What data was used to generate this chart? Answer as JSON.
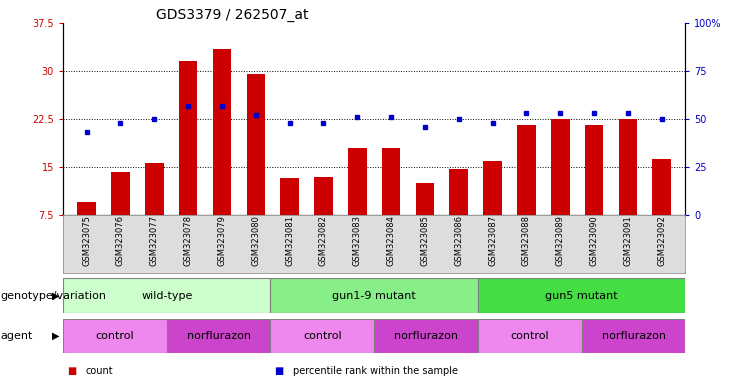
{
  "title": "GDS3379 / 262507_at",
  "samples": [
    "GSM323075",
    "GSM323076",
    "GSM323077",
    "GSM323078",
    "GSM323079",
    "GSM323080",
    "GSM323081",
    "GSM323082",
    "GSM323083",
    "GSM323084",
    "GSM323085",
    "GSM323086",
    "GSM323087",
    "GSM323088",
    "GSM323089",
    "GSM323090",
    "GSM323091",
    "GSM323092"
  ],
  "counts": [
    9.5,
    14.3,
    15.7,
    31.5,
    33.5,
    29.5,
    13.3,
    13.5,
    18.0,
    18.0,
    12.5,
    14.7,
    16.0,
    21.5,
    22.5,
    21.5,
    22.5,
    16.3
  ],
  "percentile_ranks": [
    43,
    48,
    50,
    57,
    57,
    52,
    48,
    48,
    51,
    51,
    46,
    50,
    48,
    53,
    53,
    53,
    53,
    50
  ],
  "ylim_left": [
    7.5,
    37.5
  ],
  "ylim_right": [
    0,
    100
  ],
  "yticks_left": [
    7.5,
    15.0,
    22.5,
    30.0,
    37.5
  ],
  "yticks_right": [
    0,
    25,
    50,
    75,
    100
  ],
  "ytick_labels_left": [
    "7.5",
    "15",
    "22.5",
    "30",
    "37.5"
  ],
  "ytick_labels_right": [
    "0",
    "25",
    "50",
    "75",
    "100%"
  ],
  "bar_color": "#cc0000",
  "dot_color": "#0000cc",
  "bg_color": "#ffffff",
  "genotype_groups": [
    {
      "label": "wild-type",
      "start": 0,
      "end": 6,
      "color": "#ccffcc"
    },
    {
      "label": "gun1-9 mutant",
      "start": 6,
      "end": 12,
      "color": "#88ee88"
    },
    {
      "label": "gun5 mutant",
      "start": 12,
      "end": 18,
      "color": "#44dd44"
    }
  ],
  "agent_groups": [
    {
      "label": "control",
      "start": 0,
      "end": 3,
      "color": "#ee88ee"
    },
    {
      "label": "norflurazon",
      "start": 3,
      "end": 6,
      "color": "#cc44cc"
    },
    {
      "label": "control",
      "start": 6,
      "end": 9,
      "color": "#ee88ee"
    },
    {
      "label": "norflurazon",
      "start": 9,
      "end": 12,
      "color": "#cc44cc"
    },
    {
      "label": "control",
      "start": 12,
      "end": 15,
      "color": "#ee88ee"
    },
    {
      "label": "norflurazon",
      "start": 15,
      "end": 18,
      "color": "#cc44cc"
    }
  ],
  "legend_items": [
    {
      "label": "count",
      "color": "#cc0000"
    },
    {
      "label": "percentile rank within the sample",
      "color": "#0000cc"
    }
  ],
  "left_label_color": "#cc0000",
  "right_label_color": "#0000cc",
  "title_fontsize": 10,
  "tick_fontsize": 7,
  "annotation_fontsize": 8,
  "label_fontsize": 8
}
